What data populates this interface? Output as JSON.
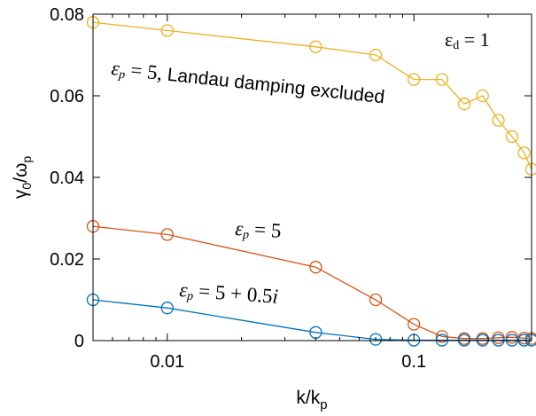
{
  "chart_data": {
    "type": "line",
    "xscale": "log",
    "xlim": [
      0.005,
      0.3
    ],
    "ylim": [
      0,
      0.08
    ],
    "x_ticks": [
      0.01,
      0.1
    ],
    "x_tick_labels": [
      "0.01",
      "0.1"
    ],
    "y_ticks": [
      0,
      0.02,
      0.04,
      0.06,
      0.08
    ],
    "y_tick_labels": [
      "0",
      "0.02",
      "0.04",
      "0.06",
      "0.08"
    ],
    "xlabel": {
      "main": "k/k",
      "sub": "p"
    },
    "ylabel": {
      "main": "γ",
      "sub0": "0",
      "mid": "/ω",
      "sub1": "p"
    },
    "grid": false,
    "box": true,
    "corner_annotation": {
      "symbol": "ε",
      "sub": "d",
      "rest": " = 1"
    },
    "series": [
      {
        "label_symbol": "ε",
        "label_sub": "p",
        "label_eq": " = 5,",
        "label_rest": " Landau damping excluded",
        "color": "#EDB120",
        "x": [
          0.005,
          0.01,
          0.04,
          0.07,
          0.1,
          0.13,
          0.16,
          0.19,
          0.22,
          0.25,
          0.28,
          0.3
        ],
        "y": [
          0.078,
          0.076,
          0.072,
          0.07,
          0.064,
          0.064,
          0.058,
          0.06,
          0.054,
          0.05,
          0.046,
          0.042
        ]
      },
      {
        "label_symbol": "ε",
        "label_sub": "p",
        "label_eq": " = 5",
        "color": "#D95319",
        "x": [
          0.005,
          0.01,
          0.04,
          0.07,
          0.1,
          0.13,
          0.16,
          0.19,
          0.22,
          0.25,
          0.28,
          0.3
        ],
        "y": [
          0.028,
          0.026,
          0.018,
          0.01,
          0.004,
          0.001,
          0.0005,
          0.0005,
          0.0007,
          0.0008,
          0.0006,
          0.0005
        ]
      },
      {
        "label_symbol": "ε",
        "label_sub": "p",
        "label_eq": " = 5 + 0.5",
        "label_imag": "i",
        "color": "#0072BD",
        "x": [
          0.005,
          0.01,
          0.04,
          0.07,
          0.1,
          0.13,
          0.16,
          0.19,
          0.22,
          0.25,
          0.28,
          0.3
        ],
        "y": [
          0.01,
          0.008,
          0.002,
          0.0003,
          0.0001,
          0.0001,
          0.0001,
          0.0001,
          0.0001,
          0.0001,
          0.0001,
          0.0001
        ]
      }
    ]
  }
}
